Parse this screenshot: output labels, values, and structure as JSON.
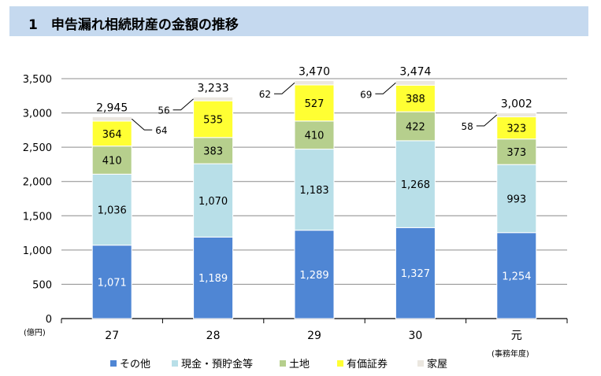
{
  "header": {
    "title": "1　申告漏れ相続財産の金額の推移"
  },
  "chart_data": {
    "type": "bar",
    "stacked": true,
    "categories": [
      "27",
      "28",
      "29",
      "30",
      "元"
    ],
    "y_unit": "(億円)",
    "x_unit": "(事務年度)",
    "ylim": [
      0,
      3500
    ],
    "yticks": [
      0,
      500,
      1000,
      1500,
      2000,
      2500,
      3000,
      3500
    ],
    "ytick_labels": [
      "0",
      "500",
      "1,000",
      "1,500",
      "2,000",
      "2,500",
      "3,000",
      "3,500"
    ],
    "grid": true,
    "series": [
      {
        "name": "その他",
        "color": "#4f86d4",
        "values": [
          1071,
          1189,
          1289,
          1327,
          1254
        ],
        "labels": [
          "1,071",
          "1,189",
          "1,289",
          "1,327",
          "1,254"
        ]
      },
      {
        "name": "現金・預貯金等",
        "color": "#b8dfe8",
        "values": [
          1036,
          1070,
          1183,
          1268,
          993
        ],
        "labels": [
          "1,036",
          "1,070",
          "1,183",
          "1,268",
          "993"
        ]
      },
      {
        "name": "土地",
        "color": "#b6cf8d",
        "values": [
          410,
          383,
          410,
          422,
          373
        ],
        "labels": [
          "410",
          "383",
          "410",
          "422",
          "373"
        ]
      },
      {
        "name": "有価証券",
        "color": "#ffff33",
        "values": [
          364,
          535,
          527,
          388,
          323
        ],
        "labels": [
          "364",
          "535",
          "527",
          "388",
          "323"
        ]
      },
      {
        "name": "家屋",
        "color": "#ebe7e0",
        "values": [
          64,
          56,
          62,
          69,
          58
        ],
        "labels": [
          "64",
          "56",
          "62",
          "69",
          "58"
        ]
      }
    ],
    "totals": [
      2945,
      3233,
      3470,
      3474,
      3002
    ],
    "total_labels": [
      "2,945",
      "3,233",
      "3,470",
      "3,474",
      "3,002"
    ],
    "legend_position": "bottom"
  }
}
